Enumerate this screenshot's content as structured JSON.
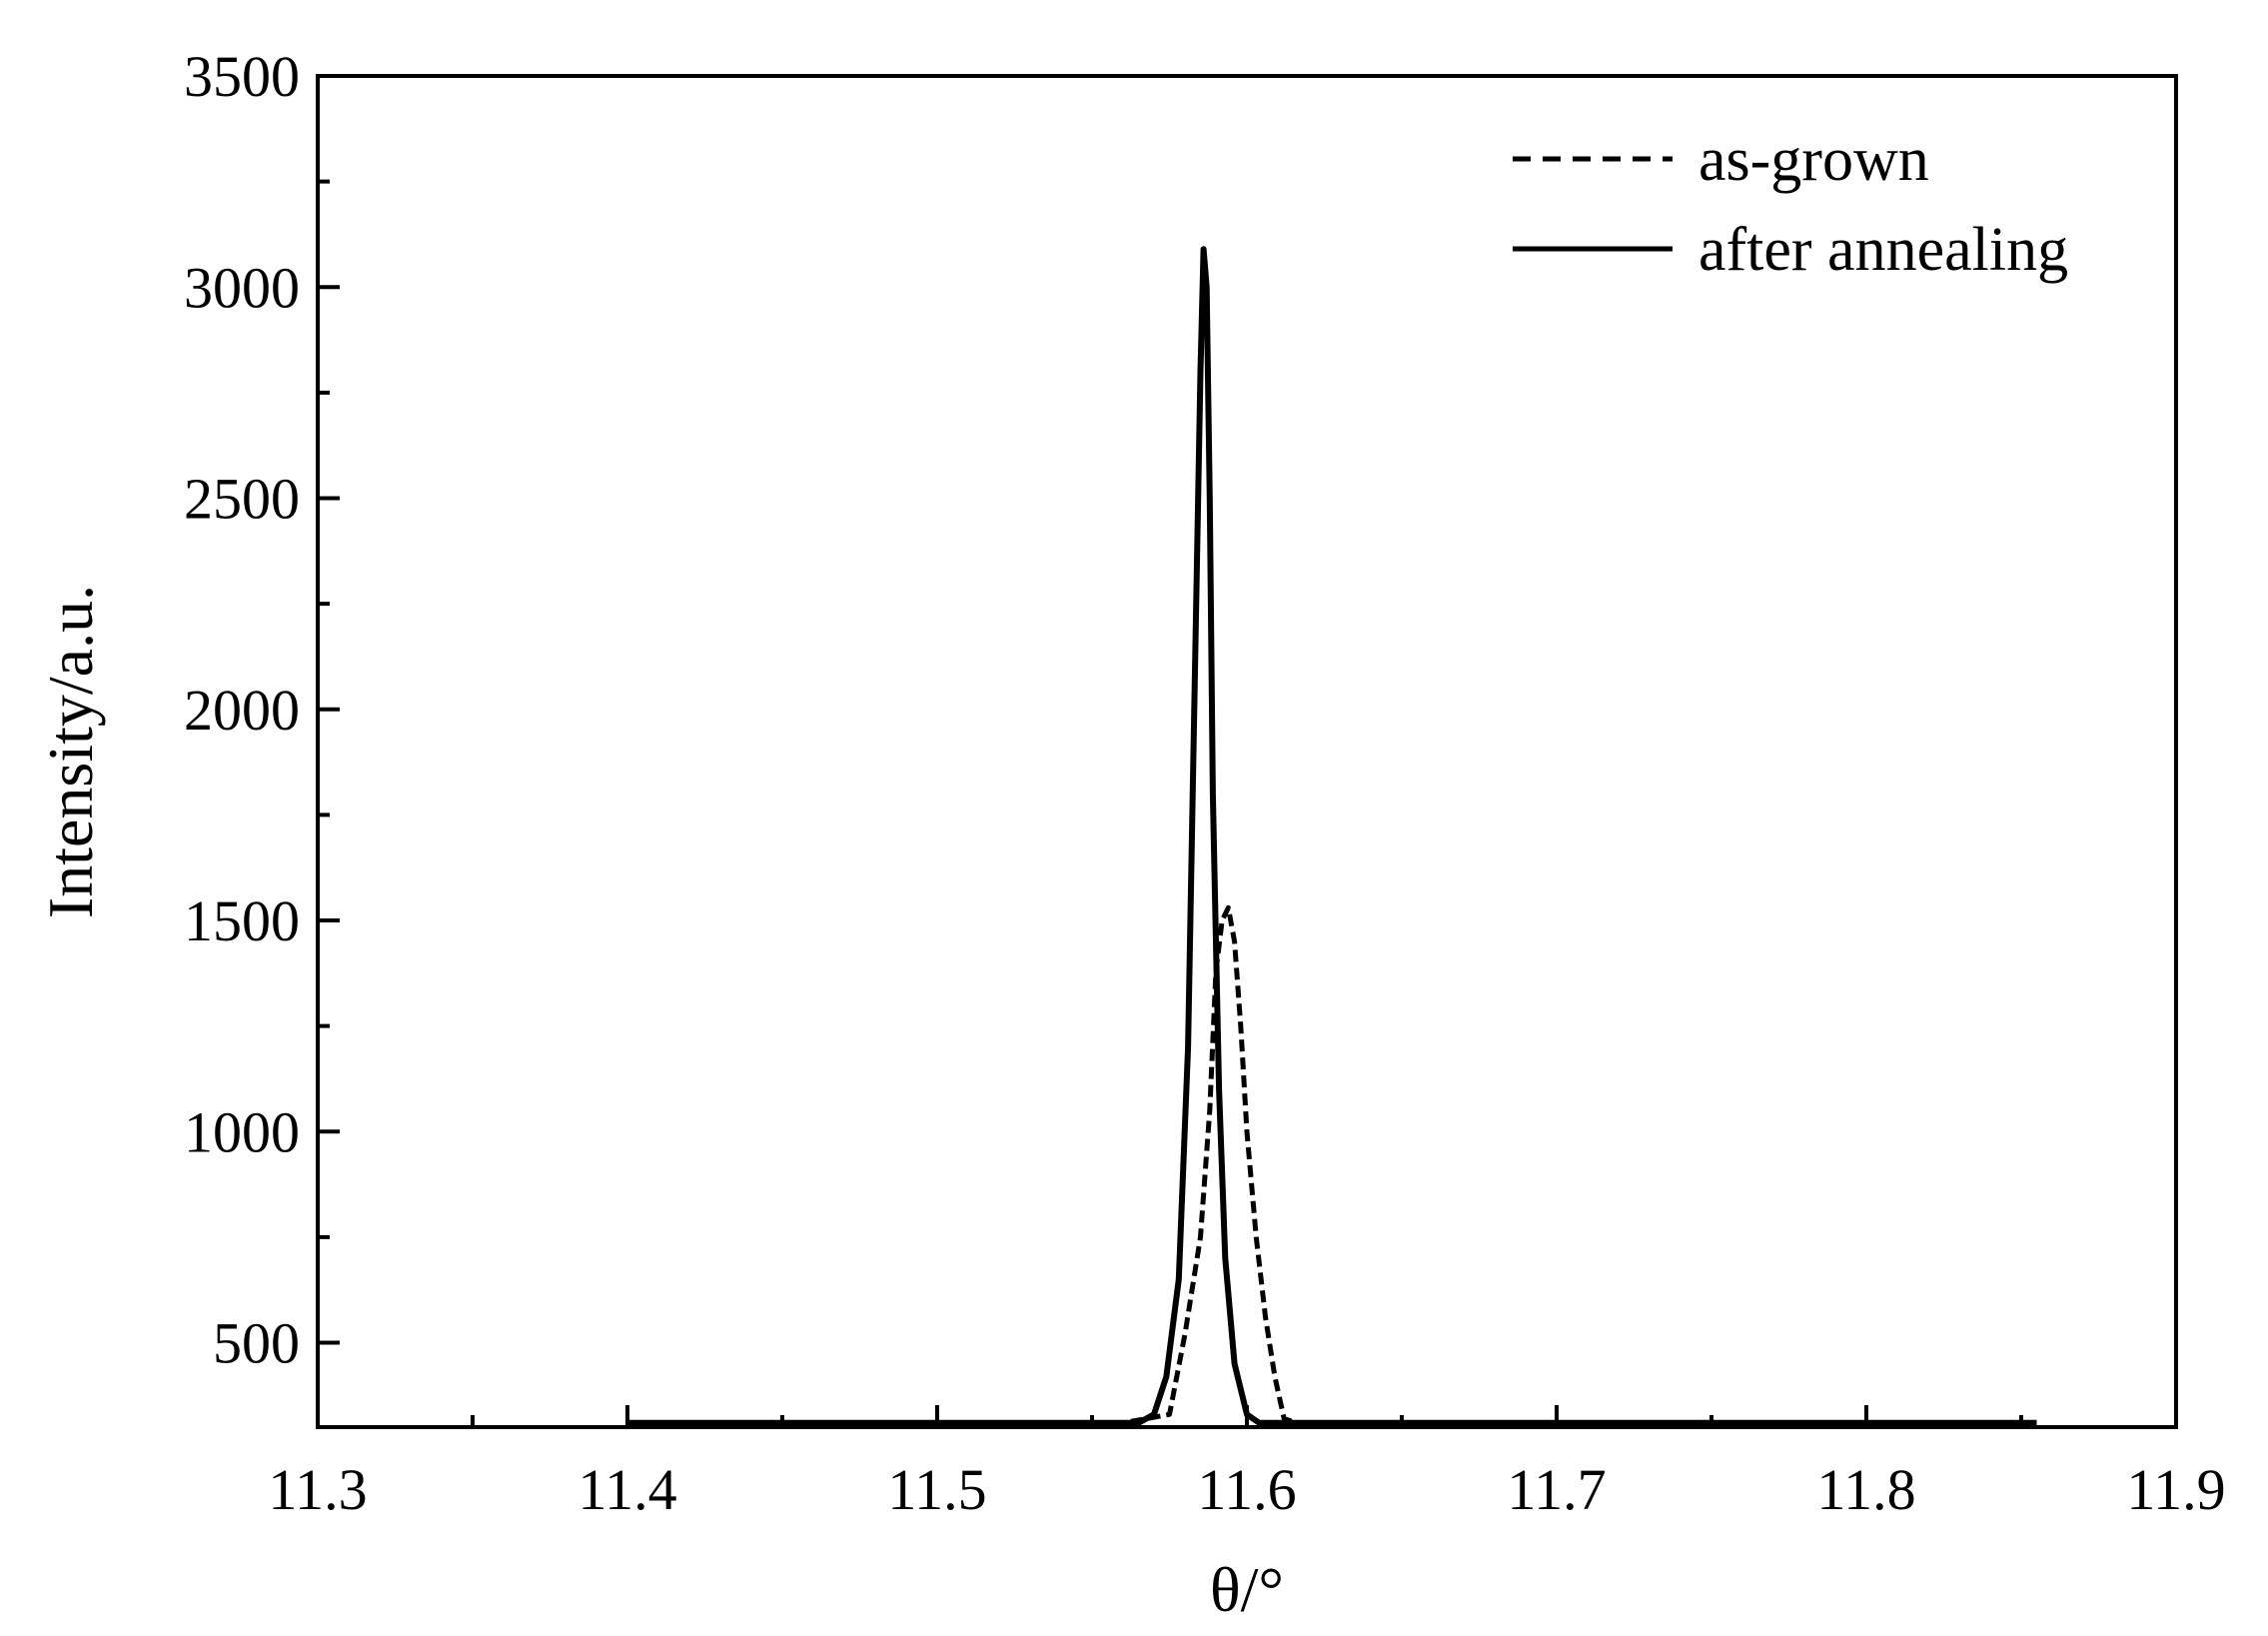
{
  "chart_data": {
    "type": "line",
    "xlabel": "θ/°",
    "ylabel": "Intensity/a.u.",
    "xlim": [
      11.3,
      11.9
    ],
    "ylim": [
      300,
      3500
    ],
    "x_ticks": [
      "11.3",
      "11.4",
      "11.5",
      "11.6",
      "11.7",
      "11.8",
      "11.9"
    ],
    "y_ticks": [
      "500",
      "1000",
      "1500",
      "2000",
      "2500",
      "3000",
      "3500"
    ],
    "legend_position": "top-right",
    "grid": false,
    "series": [
      {
        "name": "as-grown",
        "style": "dashed",
        "color": "#000000",
        "x": [
          11.4,
          11.5,
          11.56,
          11.575,
          11.58,
          11.585,
          11.588,
          11.59,
          11.592,
          11.594,
          11.596,
          11.598,
          11.6,
          11.603,
          11.606,
          11.609,
          11.612,
          11.616,
          11.65,
          11.75,
          11.855
        ],
        "y": [
          310,
          310,
          310,
          330,
          520,
          750,
          1050,
          1380,
          1500,
          1530,
          1450,
          1250,
          1000,
          750,
          560,
          420,
          320,
          310,
          310,
          310,
          310
        ]
      },
      {
        "name": "after annealing",
        "style": "solid",
        "color": "#000000",
        "x": [
          11.4,
          11.5,
          11.565,
          11.57,
          11.574,
          11.578,
          11.581,
          11.583,
          11.585,
          11.586,
          11.587,
          11.588,
          11.589,
          11.591,
          11.593,
          11.596,
          11.6,
          11.604,
          11.61,
          11.7,
          11.855
        ],
        "y": [
          310,
          310,
          310,
          330,
          420,
          650,
          1200,
          2000,
          2800,
          3090,
          3000,
          2500,
          1800,
          1100,
          700,
          450,
          330,
          310,
          310,
          310,
          310
        ]
      }
    ]
  }
}
